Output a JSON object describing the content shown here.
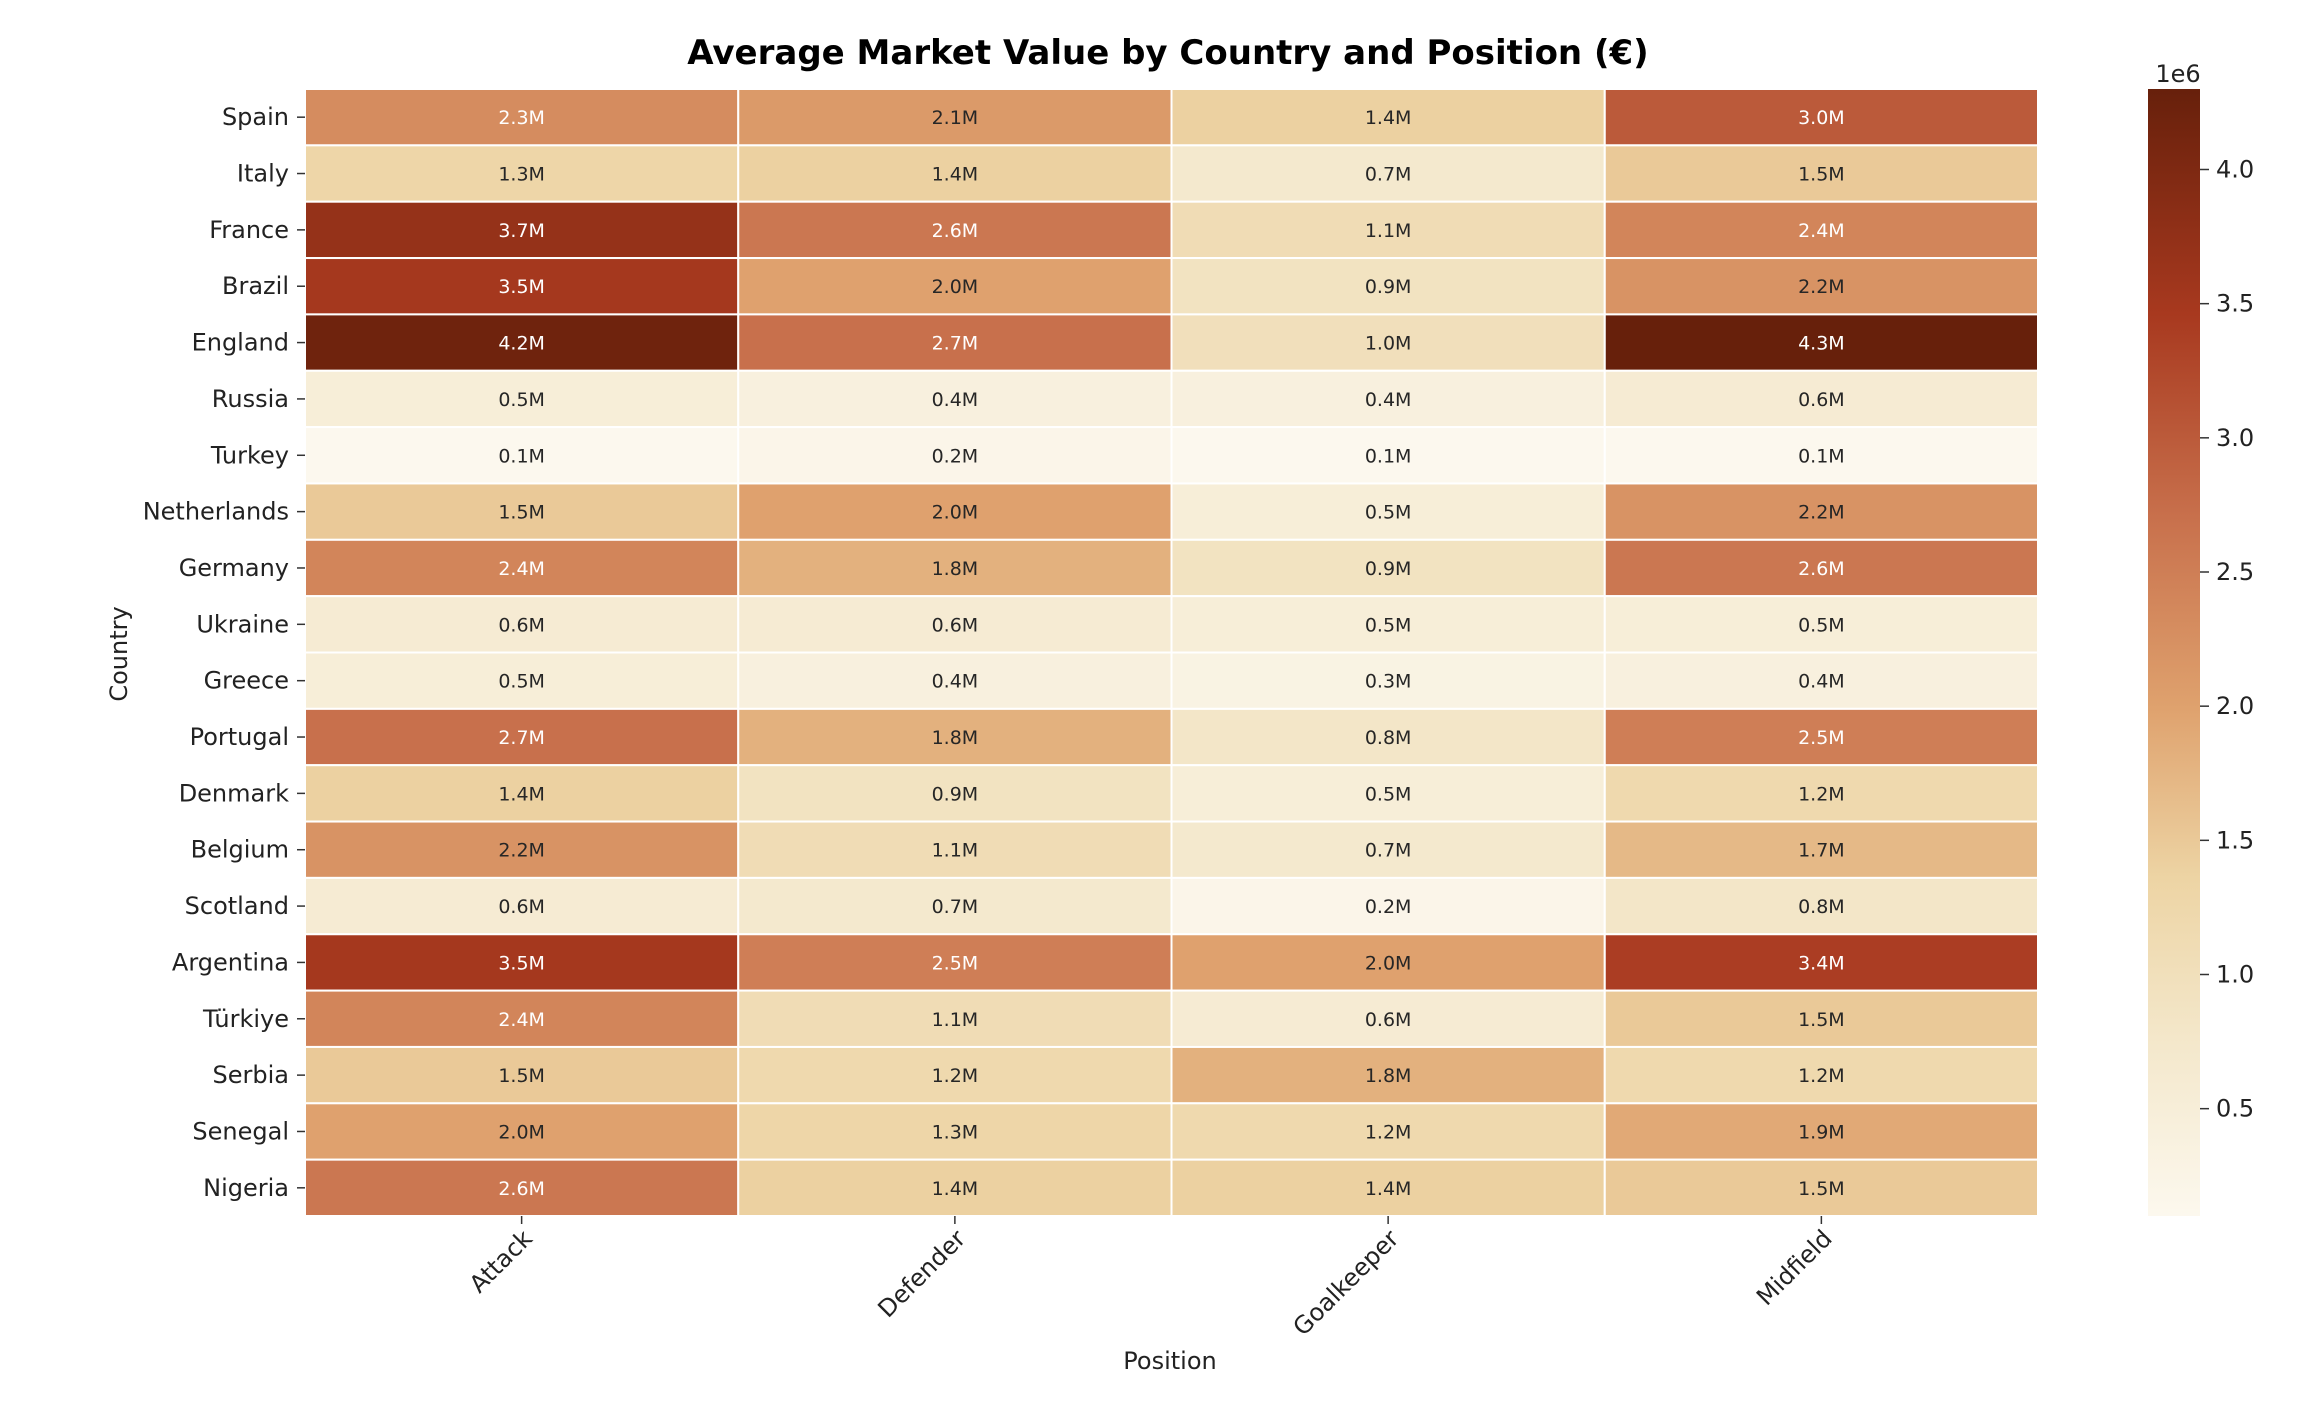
{
  "chart_data": {
    "type": "heatmap",
    "title": "Average Market Value by Country and Position (€)",
    "xlabel": "Position",
    "ylabel": "Country",
    "columns": [
      "Attack",
      "Defender",
      "Goalkeeper",
      "Midfield"
    ],
    "rows": [
      "Spain",
      "Italy",
      "France",
      "Brazil",
      "England",
      "Russia",
      "Turkey",
      "Netherlands",
      "Germany",
      "Ukraine",
      "Greece",
      "Portugal",
      "Denmark",
      "Belgium",
      "Scotland",
      "Argentina",
      "Türkiye",
      "Serbia",
      "Senegal",
      "Nigeria"
    ],
    "values": [
      [
        2.3,
        2.1,
        1.4,
        3.0
      ],
      [
        1.3,
        1.4,
        0.7,
        1.5
      ],
      [
        3.7,
        2.6,
        1.1,
        2.4
      ],
      [
        3.5,
        2.0,
        0.9,
        2.2
      ],
      [
        4.2,
        2.7,
        1.0,
        4.3
      ],
      [
        0.5,
        0.4,
        0.4,
        0.6
      ],
      [
        0.1,
        0.2,
        0.1,
        0.1
      ],
      [
        1.5,
        2.0,
        0.5,
        2.2
      ],
      [
        2.4,
        1.8,
        0.9,
        2.6
      ],
      [
        0.6,
        0.6,
        0.5,
        0.5
      ],
      [
        0.5,
        0.4,
        0.3,
        0.4
      ],
      [
        2.7,
        1.8,
        0.8,
        2.5
      ],
      [
        1.4,
        0.9,
        0.5,
        1.2
      ],
      [
        2.2,
        1.1,
        0.7,
        1.7
      ],
      [
        0.6,
        0.7,
        0.2,
        0.8
      ],
      [
        3.5,
        2.5,
        2.0,
        3.4
      ],
      [
        2.4,
        1.1,
        0.6,
        1.5
      ],
      [
        1.5,
        1.2,
        1.8,
        1.2
      ],
      [
        2.0,
        1.3,
        1.2,
        1.9
      ],
      [
        2.6,
        1.4,
        1.4,
        1.5
      ]
    ],
    "cell_labels": [
      [
        "2.3M",
        "2.1M",
        "1.4M",
        "3.0M"
      ],
      [
        "1.3M",
        "1.4M",
        "0.7M",
        "1.5M"
      ],
      [
        "3.7M",
        "2.6M",
        "1.1M",
        "2.4M"
      ],
      [
        "3.5M",
        "2.0M",
        "0.9M",
        "2.2M"
      ],
      [
        "4.2M",
        "2.7M",
        "1.0M",
        "4.3M"
      ],
      [
        "0.5M",
        "0.4M",
        "0.4M",
        "0.6M"
      ],
      [
        "0.1M",
        "0.2M",
        "0.1M",
        "0.1M"
      ],
      [
        "1.5M",
        "2.0M",
        "0.5M",
        "2.2M"
      ],
      [
        "2.4M",
        "1.8M",
        "0.9M",
        "2.6M"
      ],
      [
        "0.6M",
        "0.6M",
        "0.5M",
        "0.5M"
      ],
      [
        "0.5M",
        "0.4M",
        "0.3M",
        "0.4M"
      ],
      [
        "2.7M",
        "1.8M",
        "0.8M",
        "2.5M"
      ],
      [
        "1.4M",
        "0.9M",
        "0.5M",
        "1.2M"
      ],
      [
        "2.2M",
        "1.1M",
        "0.7M",
        "1.7M"
      ],
      [
        "0.6M",
        "0.7M",
        "0.2M",
        "0.8M"
      ],
      [
        "3.5M",
        "2.5M",
        "2.0M",
        "3.4M"
      ],
      [
        "2.4M",
        "1.1M",
        "0.6M",
        "1.5M"
      ],
      [
        "1.5M",
        "1.2M",
        "1.8M",
        "1.2M"
      ],
      [
        "2.0M",
        "1.3M",
        "1.2M",
        "1.9M"
      ],
      [
        "2.6M",
        "1.4M",
        "1.4M",
        "1.5M"
      ]
    ],
    "colormap": "Oranges-brown (light cream to dark brown)",
    "colorbar": {
      "range": [
        0.1,
        4.3
      ],
      "ticks": [
        0.5,
        1.0,
        1.5,
        2.0,
        2.5,
        3.0,
        3.5,
        4.0
      ],
      "tick_labels": [
        "0.5",
        "1.0",
        "1.5",
        "2.0",
        "2.5",
        "3.0",
        "3.5",
        "4.0"
      ],
      "offset_label": "1e6",
      "position": "right"
    },
    "colors": {
      "low": "#fcf8ee",
      "mid1": "#edd4a4",
      "mid2": "#dfa26e",
      "mid3": "#c8704c",
      "high_mid": "#a8391f",
      "high": "#67200b",
      "cell_border": "#ffffff"
    }
  }
}
